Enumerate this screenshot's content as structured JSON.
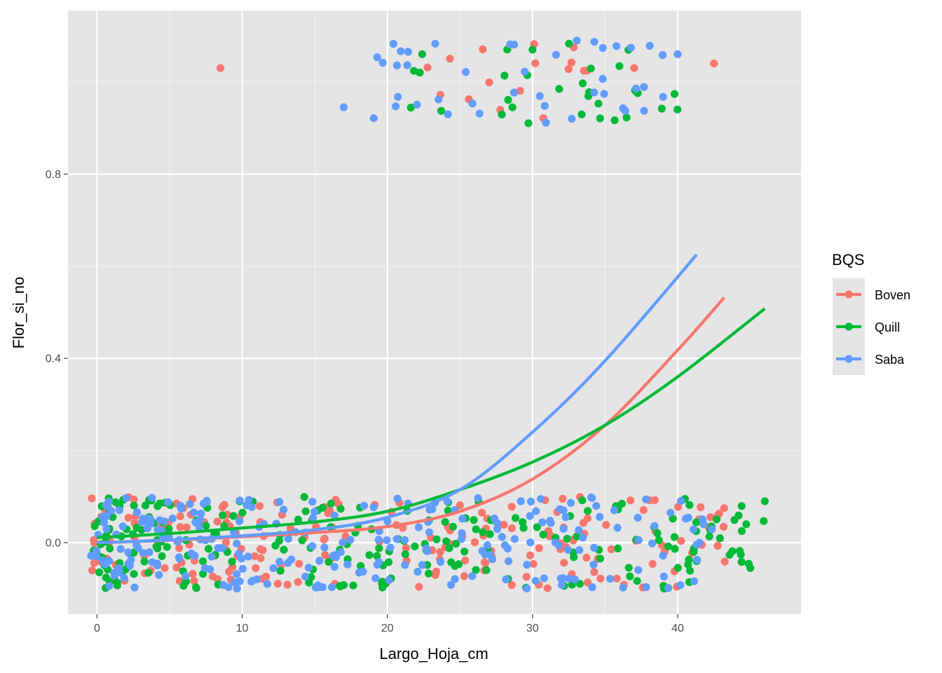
{
  "chart_data": {
    "type": "scatter",
    "title": "",
    "xlabel": "Largo_Hoja_cm",
    "ylabel": "Flor_si_no",
    "xlim": [
      -2,
      48.5
    ],
    "ylim": [
      -0.155,
      1.155
    ],
    "xticks": [
      0,
      10,
      20,
      30,
      40
    ],
    "yticks": [
      0.0,
      0.4,
      0.8
    ],
    "ytick_labels": [
      "0.0",
      "0.4",
      "0.8"
    ],
    "grid": true,
    "background": "#e5e5e5",
    "legend": {
      "title": "BQS",
      "placement": "right",
      "entries": [
        "Boven",
        "Quill",
        "Saba"
      ]
    },
    "series": [
      {
        "name": "Boven",
        "color": "#F8766D",
        "curve_x": [
          0,
          5,
          10,
          15,
          20,
          25,
          30,
          35,
          40,
          43.2
        ],
        "curve_y": [
          0.0,
          0.005,
          0.013,
          0.022,
          0.035,
          0.068,
          0.138,
          0.255,
          0.418,
          0.532
        ],
        "highlight_points": [
          [
            8.5,
            1.03
          ],
          [
            42.5,
            1.04
          ],
          [
            37,
            1.03
          ],
          [
            43.2,
            0.075
          ]
        ]
      },
      {
        "name": "Quill",
        "color": "#00BA38",
        "curve_x": [
          0,
          5,
          10,
          15,
          20,
          25,
          30,
          35,
          40,
          46
        ],
        "curve_y": [
          0.011,
          0.02,
          0.032,
          0.045,
          0.068,
          0.115,
          0.175,
          0.255,
          0.36,
          0.508
        ],
        "highlight_points": [
          [
            46,
            0.09
          ],
          [
            40.5,
            0.095
          ],
          [
            30,
            1.07
          ],
          [
            45,
            -0.055
          ]
        ]
      },
      {
        "name": "Saba",
        "color": "#619CFF",
        "curve_x": [
          0,
          5,
          10,
          15,
          20,
          25,
          30,
          35,
          41.3
        ],
        "curve_y": [
          0.0,
          0.006,
          0.015,
          0.028,
          0.055,
          0.115,
          0.24,
          0.395,
          0.625
        ],
        "highlight_points": [
          [
            40,
            1.06
          ],
          [
            17,
            0.945
          ],
          [
            41.5,
            0.0
          ],
          [
            39.5,
            0.065
          ]
        ]
      }
    ],
    "clusters": [
      {
        "series": "Boven",
        "x_range": [
          0,
          43
        ],
        "y_range": [
          -0.1,
          0.1
        ],
        "count": 200
      },
      {
        "series": "Quill",
        "x_range": [
          0,
          46
        ],
        "y_range": [
          -0.1,
          0.1
        ],
        "count": 230
      },
      {
        "series": "Saba",
        "x_range": [
          0,
          42
        ],
        "y_range": [
          -0.1,
          0.1
        ],
        "count": 250
      },
      {
        "series": "Boven",
        "x_range": [
          21,
          34
        ],
        "y_range": [
          0.91,
          1.09
        ],
        "count": 16
      },
      {
        "series": "Quill",
        "x_range": [
          20,
          40
        ],
        "y_range": [
          0.91,
          1.09
        ],
        "count": 30
      },
      {
        "series": "Saba",
        "x_range": [
          19,
          40
        ],
        "y_range": [
          0.91,
          1.09
        ],
        "count": 42
      }
    ]
  }
}
